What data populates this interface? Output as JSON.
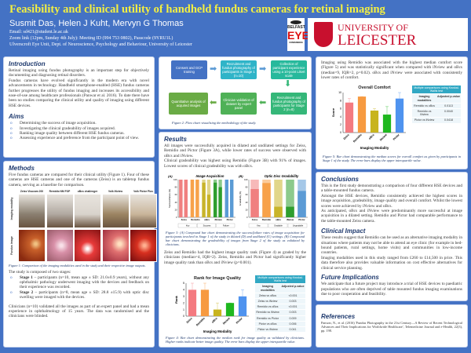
{
  "header": {
    "title": "Feasibility and clinical utility of handheld fundus cameras for retinal imaging",
    "authors": "Susmit Das, Helen J Kuht, Mervyn G Thomas",
    "email": "Email: sd421@student.le.ac.uk",
    "zoom": "Zoom link (12pm, Sunday 4th July): Meeting ID (994 753 0802), Passcode (9YRU1L)",
    "affiliation": "Ulverscroft Eye Unit, Dept. of Neuroscience, Psychology and Behaviour, University of Leicester",
    "logo_belfast": "BELFAST EYE CONFERENCE",
    "logo_leicester_1": "UNIVERSITY OF",
    "logo_leicester_2": "LEICESTER"
  },
  "intro": {
    "heading": "Introduction",
    "p1": "Retinal imaging using fundus photography is an important step for objectively documenting and diagnosing retinal disorders.",
    "p2": "Fundus cameras have evolved significantly in the modern era with novel advancements in technology. Handheld smartphone-enabled (HSE) fundus cameras further progresses the utility of fundus imaging and increases its accessibility and ease-of-use among healthcare professionals (Panwar et al. 2016). To date there have been no studies comparing the clinical utility and quality of imaging using different HSE devices."
  },
  "aims": {
    "heading": "Aims",
    "items": [
      "Determining the success of image acquisition.",
      "Investigating the clinical gradeability of images acquired.",
      "Ranking image quality between different HSE fundus cameras.",
      "Assessing experience and preference from the participant point of view."
    ]
  },
  "methods": {
    "heading": "Methods",
    "p1": "Five fundus cameras are compared for their clinical utility (Figure 1). Four of these cameras are HSE cameras and one of the cameras (Zeiss) is an tabletop fundus camera, serving as a baseline for comparison.",
    "devices": [
      "Zeiss Visucam 200",
      "Remidio NM FOP",
      "oBcs challenger",
      "Volk iNview",
      "Volk Pictor Plus"
    ],
    "row_labels": [
      "Imaging modality",
      "Fundus image"
    ],
    "fig1_caption": "Figure 1: Comparison of the imaging modalities used in the study and their respective image outputs.",
    "stages_intro": "The study is composed of two stages:",
    "stage1_label": "Stage 1",
    "stage1": " – participants (n=10, mean age ± SD: 21.0±0.9 years), without any ophthalmic pathology underwent imaging with the devices and feedback on their experience was recorded.",
    "stage2_label": "Stage 2",
    "stage2": " – participants (n=8, mean age ± SD: 28.8 ±15.9) with optic disc swelling were imaged with the devices.",
    "p2": "Clinicians (n=10) validated all the images as part of an expert panel and had a mean experience in ophthalmology of 15 years. The data was randomised and the clinicians were blinded."
  },
  "flow": {
    "boxes": [
      "Consent and GCP training",
      "Recruitment and fundus photography of participants in Stage 1 (n=10)",
      "Collection of participant experience using a 10-point Likert scale",
      "Recruitment and fundus photography of participants for Stage 2 (n=8)",
      "Clinician validation of dataset by expert panel",
      "Quantitative analysis of acquired images"
    ],
    "colors": [
      "#4472c4",
      "#2fb4c8",
      "#27b99c",
      "#35b779",
      "#4fb157",
      "#6aab45"
    ],
    "caption": "Figure 2: Flow chart visualising the methodology of the study."
  },
  "results": {
    "heading": "Results",
    "p1": "All images were successfully acquired in dilated and undilated settings for Zeiss, Remidio and Pictor (Figure 3A), while lower rates of success were observed with oBcs and iNview.",
    "p2": "Clinical gradeability was highest using Remidio (Figure 3B) with 91% of images. Lowest scores of clinical gradeability was with oBcs.",
    "fig3_caption": "Figure 3: (A) Compound bar chart demonstrating the success/failure rates of image acquisition for participants involved in Stage 1 of the study in dilated (D) and undilated (U) settings. (B) Compound bar chart demonstrating the gradeability of images from Stage 2 of the study as validated by clinicians.",
    "p3": "Zeiss and Remidio had the highest image quality rank (Figure 4) as graded by the clinicians (median=4, IQR=2). Zeiss, Remidio and Pictor had significantly higher image quality rank than oBcs and iNview (p=0.001).",
    "fig4_caption": "Figure 4: Bar chart demonstrating the median rank for image quality as validated by clinicians. Higher ranks indicate better image quality. The error bars display the upper interquartile value.",
    "table4": {
      "title": "Multiple comparisons using Kruskal-Wallis test",
      "cols": [
        "Imaging modalities",
        "Adjusted p-value"
      ],
      "rows": [
        [
          "Zeiss vs oBcs",
          "<0.001"
        ],
        [
          "Zeiss vs iNview",
          "0.003"
        ],
        [
          "Remidio vs oBcs",
          "<0.001"
        ],
        [
          "Remidio vs iNview",
          "0.003"
        ],
        [
          "Remidio vs Pictor",
          "0.009"
        ],
        [
          "Pictor vs oBcs",
          "0.006"
        ],
        [
          "Pictor vs iNview",
          "0.041"
        ]
      ]
    }
  },
  "comfort": {
    "p1": "Imaging using Remidio was associated with the highest median comfort score (Figure 5) and was statistically significant when compared with iNview and oBcs (median=9, IQR=2, p=0.02). oBcs and iNview were associated with consistently lower rates of comfort.",
    "fig5_caption": "Figure 5: Bar chart demonstrating the median scores for overall comfort as given by participants in Stage 1 of the study. The error bars display the upper interquartile value.",
    "table5": {
      "title": "Multiple comparisons using Kruskal-Wallis test",
      "cols": [
        "Imaging modalities",
        "Adjusted p-value"
      ],
      "rows": [
        [
          "Remidio vs oBcs",
          "0.0113"
        ],
        [
          "Remidio vs iNview",
          "0.0040"
        ],
        [
          "Pictor vs iNview",
          "0.0418"
        ]
      ]
    }
  },
  "conclusions": {
    "heading": "Conclusions",
    "p1": "This is the first study demonstrating a comparison of four different HSE devices and a table-mounted fundus camera.",
    "p2": "Amongst the HSE devices, Remidio consistently achieved the highest scores in image acquisition, gradeability, image quality and overall comfort. Whilst the lowest scores were achieved by iNview and oBcs.",
    "p3": "As anticipated, oBcs and iNview were predominantly more successful at image acquisition in a dilated setting. Remidio and Pictor had comparable performance to the table-mounted Zeiss camera."
  },
  "impact": {
    "heading": "Clinical Impact",
    "p1": "These results suggest that Remidio can be used as an alternative imaging modality in situations where patients may not be able to attend an eye clinic (for example in bed-bound patients, rural settings, home visits) and communities in low-income countries.",
    "p2": "Imaging modalities used in this study ranged from £260 to £14,500 in price. This data therefore also provides valuable information on cost effective alternatives for clinical service planning."
  },
  "future": {
    "heading": "Future Implications",
    "p1": "We anticipate that a future project may introduce a trial of HSE devices to paediatric populations who are often deprived of table mounted fundus imaging examinations due to poor cooperation and feasibility."
  },
  "references": {
    "heading": "References",
    "p1": "Panwar, N., et al. (2016) 'Fundus Photography in the 21st Century—A Review of Recent Technological Advances and Their Implications for Worldwide Healthcare', Telemedicine Journal and e-Health, 22(3), pp. 198."
  },
  "chart_data": [
    {
      "type": "bar",
      "title": "Image Acquisition",
      "panel_label": "(A)",
      "ylabel": "Success/failure (%)",
      "ylim": [
        0,
        100
      ],
      "categories": [
        "Zeiss",
        "Remidio",
        "oBcs",
        "iNview",
        "Pictor"
      ],
      "series": [
        {
          "name": "Success",
          "dilated": [
            100,
            100,
            92,
            92,
            100
          ],
          "undilated": [
            100,
            100,
            60,
            80,
            100
          ]
        },
        {
          "name": "Failure",
          "dilated": [
            0,
            0,
            8,
            8,
            0
          ],
          "undilated": [
            0,
            0,
            40,
            20,
            0
          ]
        }
      ],
      "legend": [
        "Key",
        "Success",
        "Failure"
      ],
      "colors": [
        "#f08080",
        "#f7a24a",
        "#c8b42a",
        "#2e9e2e",
        "#5b9bd5"
      ]
    },
    {
      "type": "bar",
      "title": "Optic Disc Gradability",
      "panel_label": "(B)",
      "ylabel": "Gradability (%)",
      "ylim": [
        0,
        100
      ],
      "categories": [
        "Zeiss",
        "Remidio",
        "oBcs",
        "iNview",
        "Pictor"
      ],
      "series": [
        {
          "name": "Gradable",
          "values": [
            75,
            91,
            28,
            28,
            70
          ]
        },
        {
          "name": "Ungradable",
          "values": [
            25,
            9,
            72,
            72,
            30
          ]
        }
      ],
      "legend": [
        "Key",
        "Gradable",
        "Ungradable"
      ],
      "colors": [
        "#f08080",
        "#f7a24a",
        "#c8b42a",
        "#2e9e2e",
        "#5b9bd5"
      ]
    },
    {
      "type": "bar",
      "title": "Rank for Image Quality",
      "xlabel": "Imaging Modality",
      "ylabel": "Rank",
      "ylim": [
        0,
        5
      ],
      "yticks": [
        0,
        1,
        2,
        3,
        4,
        5
      ],
      "categories": [
        "Zeiss",
        "Remidio",
        "oBcs",
        "iNview",
        "Pictor"
      ],
      "values": [
        4,
        4,
        1,
        2,
        3
      ],
      "error_upper": [
        5,
        5,
        2,
        2,
        4
      ],
      "colors": [
        "#f47a80",
        "#f79a40",
        "#c8b41e",
        "#1fb81f",
        "#4f93ef"
      ]
    },
    {
      "type": "bar",
      "title": "Overall Comfort",
      "xlabel": "Imaging Modality",
      "ylabel": "Score",
      "ylim": [
        0,
        10
      ],
      "yticks": [
        0,
        2,
        4,
        6,
        8,
        10
      ],
      "categories": [
        "Zeiss",
        "Remidio",
        "oBcs",
        "iNview",
        "Pictor"
      ],
      "values": [
        7.5,
        9,
        5.5,
        4.5,
        8.5
      ],
      "error_upper": [
        8.5,
        9,
        6,
        6.5,
        10
      ],
      "colors": [
        "#f47a80",
        "#f79a40",
        "#c8b41e",
        "#1fb81f",
        "#4f93ef"
      ]
    }
  ]
}
